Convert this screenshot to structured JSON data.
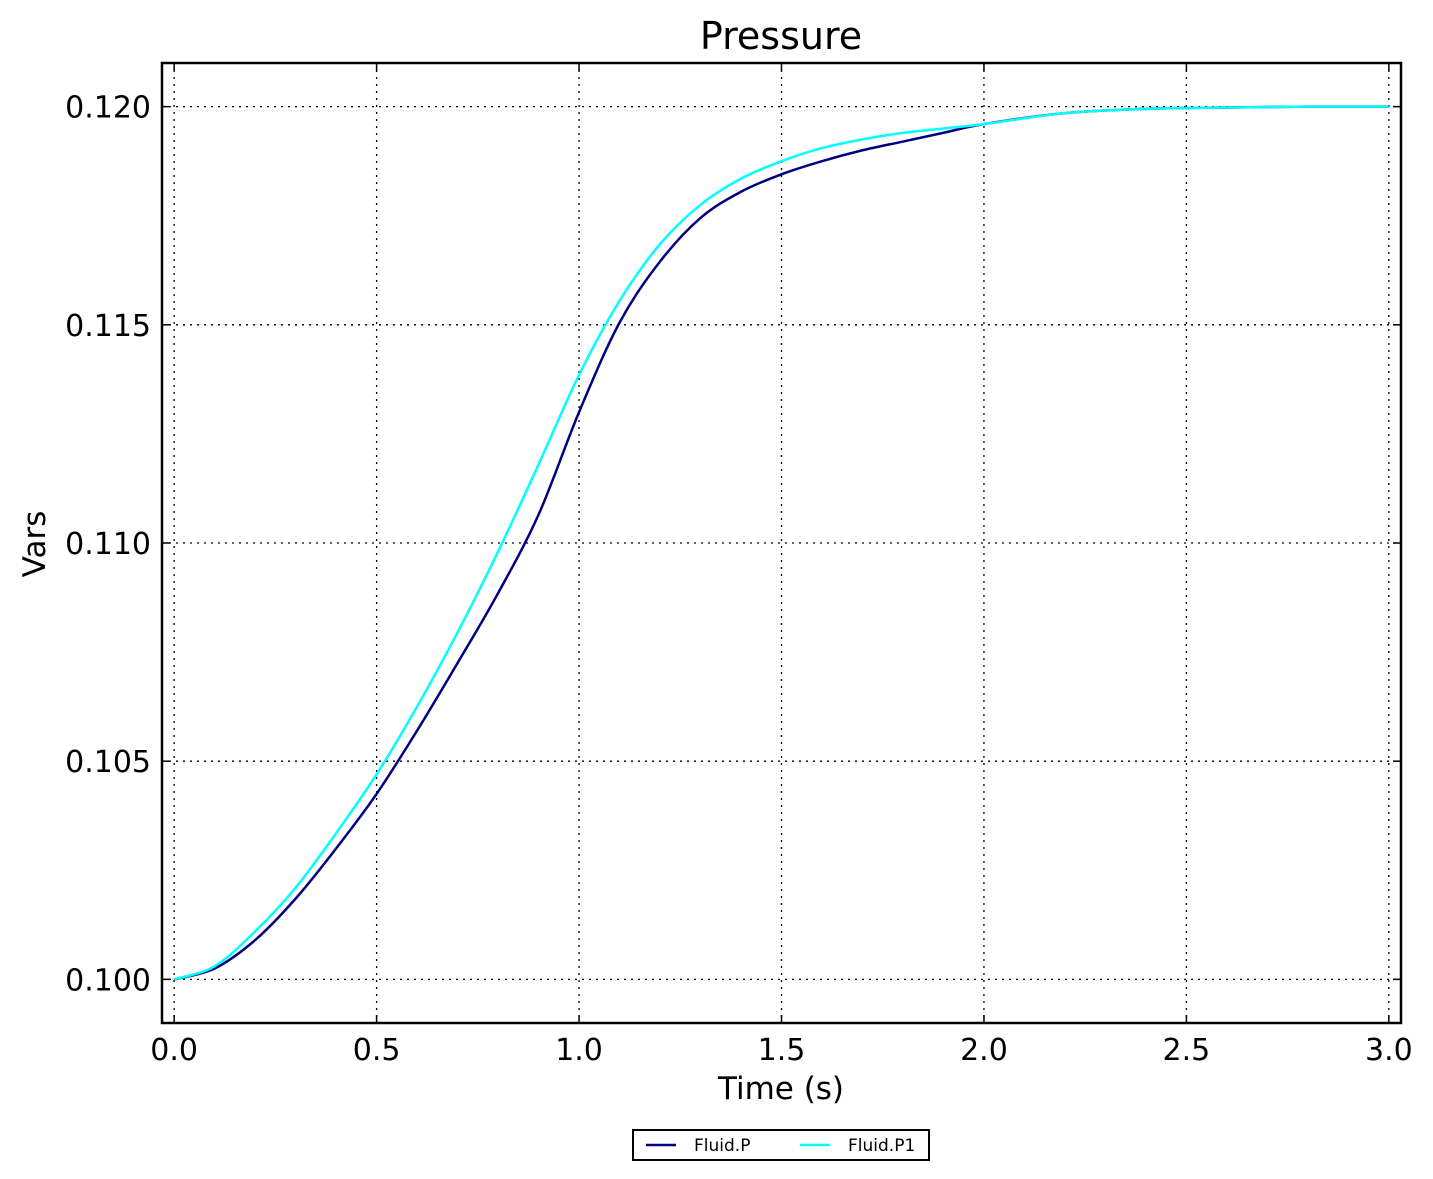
{
  "chart_data": {
    "type": "line",
    "title": "Pressure",
    "xlabel": "Time (s)",
    "ylabel": "Vars",
    "xlim": [
      -0.03,
      3.03
    ],
    "ylim": [
      0.099,
      0.121
    ],
    "xticks": [
      0.0,
      0.5,
      1.0,
      1.5,
      2.0,
      2.5,
      3.0
    ],
    "xtick_labels": [
      "0.0",
      "0.5",
      "1.0",
      "1.5",
      "2.0",
      "2.5",
      "3.0"
    ],
    "yticks": [
      0.1,
      0.105,
      0.11,
      0.115,
      0.12
    ],
    "ytick_labels": [
      "0.100",
      "0.105",
      "0.110",
      "0.115",
      "0.120"
    ],
    "grid": true,
    "legend_position": "bottom-center",
    "x": [
      0.0,
      0.1,
      0.2,
      0.3,
      0.4,
      0.5,
      0.6,
      0.7,
      0.8,
      0.9,
      1.0,
      1.1,
      1.2,
      1.3,
      1.4,
      1.5,
      1.6,
      1.7,
      1.8,
      1.9,
      2.0,
      2.2,
      2.4,
      2.6,
      2.8,
      3.0
    ],
    "series": [
      {
        "name": "Fluid.P",
        "color": "#000080",
        "values": [
          0.1,
          0.10025,
          0.1009,
          0.10185,
          0.103,
          0.10425,
          0.1057,
          0.10725,
          0.10885,
          0.11065,
          0.113,
          0.11505,
          0.11645,
          0.11745,
          0.11805,
          0.11845,
          0.11875,
          0.119,
          0.1192,
          0.1194,
          0.1196,
          0.11985,
          0.11995,
          0.11998,
          0.12,
          0.12
        ]
      },
      {
        "name": "Fluid.P1",
        "color": "#00FFFF",
        "values": [
          0.1,
          0.1003,
          0.1011,
          0.1021,
          0.10335,
          0.1047,
          0.10625,
          0.10795,
          0.1098,
          0.1118,
          0.11385,
          0.11555,
          0.11685,
          0.11775,
          0.11835,
          0.11875,
          0.11905,
          0.11925,
          0.1194,
          0.1195,
          0.1196,
          0.11985,
          0.11995,
          0.11998,
          0.12,
          0.12
        ]
      }
    ]
  }
}
